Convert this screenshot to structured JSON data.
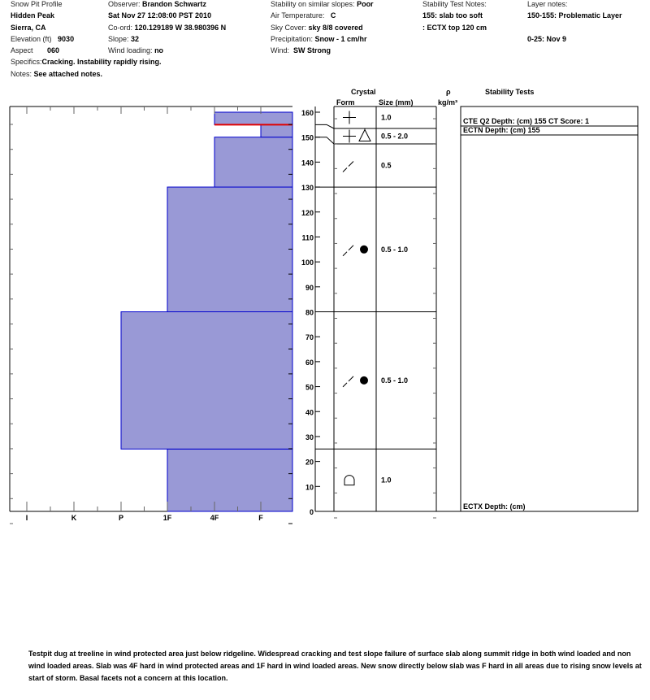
{
  "header": {
    "title": "Snow Pit Profile",
    "location": "Hidden Peak",
    "region": "Sierra, CA",
    "elevation_label": "Elevation (ft)",
    "elevation": "9030",
    "aspect_label": "Aspect",
    "aspect": "060",
    "specifics_label": "Specifics:",
    "specifics": "Cracking. Instability rapidly rising.",
    "notes_label": "Notes:",
    "notes": "See attached notes.",
    "observer_label": "Observer:",
    "observer": "Brandon Schwartz",
    "datetime": "Sat Nov 27 12:08:00 PST 2010",
    "coord_label": "Co-ord:",
    "coord": "120.129189 W 38.980396 N",
    "slope_label": "Slope:",
    "slope": "32",
    "wind_loading_label": "Wind loading:",
    "wind_loading": "no",
    "stability_label": "Stability on similar slopes:",
    "stability": "Poor",
    "air_temp_label": "Air Temperature:",
    "air_temp": "C",
    "sky_label": "Sky Cover:",
    "sky": "sky 8/8 covered",
    "precip_label": "Precipitation:",
    "precip": "Snow - 1 cm/hr",
    "wind_label": "Wind:",
    "wind": "SW Strong",
    "test_notes_label": "Stability Test Notes:",
    "test_notes": [
      "155: slab too soft",
      ": ECTX top 120 cm"
    ],
    "layer_notes_label": "Layer notes:",
    "layer_notes": [
      "150-155: Problematic Layer",
      "0-25: Nov 9"
    ]
  },
  "columns": {
    "crystal": "Crystal",
    "form": "Form",
    "size": "Size (mm)",
    "rho": "ρ",
    "density_unit": "kg/m³",
    "stability_tests": "Stability Tests"
  },
  "chart_data": {
    "type": "bar",
    "subtype": "snow-hardness-profile",
    "ylim": [
      0,
      160
    ],
    "yticks": [
      0,
      10,
      20,
      30,
      40,
      50,
      60,
      70,
      80,
      90,
      100,
      110,
      120,
      130,
      140,
      150,
      160
    ],
    "hardness_scale": [
      "I",
      "K",
      "P",
      "1F",
      "4F",
      "F"
    ],
    "fill_color": "#9999d6",
    "edge_color": "#0000cc",
    "critical_layer_color": "#e00000",
    "critical_layer_depth": 155,
    "layers": [
      {
        "bottom": 0,
        "top": 25,
        "hardness": "1F"
      },
      {
        "bottom": 25,
        "top": 80,
        "hardness": "P"
      },
      {
        "bottom": 80,
        "top": 130,
        "hardness": "1F"
      },
      {
        "bottom": 130,
        "top": 150,
        "hardness": "4F"
      },
      {
        "bottom": 150,
        "top": 155,
        "hardness": "F"
      },
      {
        "bottom": 155,
        "top": 160,
        "hardness": "4F"
      }
    ],
    "crystals": [
      {
        "bottom": 155,
        "top": 160,
        "forms": [
          "precipitation-particles"
        ],
        "size": "1.0"
      },
      {
        "bottom": 150,
        "top": 155,
        "forms": [
          "precipitation-particles",
          "faceted"
        ],
        "size": "0.5 -   2.0"
      },
      {
        "bottom": 130,
        "top": 150,
        "forms": [
          "decomposing-fragmented"
        ],
        "size": "0.5"
      },
      {
        "bottom": 80,
        "top": 130,
        "forms": [
          "decomposing-fragmented",
          "rounded"
        ],
        "size": "0.5 -   1.0"
      },
      {
        "bottom": 25,
        "top": 80,
        "forms": [
          "decomposing-fragmented",
          "rounded"
        ],
        "size": "0.5 -   1.0"
      },
      {
        "bottom": 0,
        "top": 25,
        "forms": [
          "depth-hoar"
        ],
        "size": "1.0"
      }
    ],
    "stability_tests": [
      {
        "text": "CTE Q2 Depth: (cm) 155 CT Score: 1",
        "depth": 155
      },
      {
        "text": "ECTN   Depth: (cm) 155",
        "depth": 155
      },
      {
        "text": "ECTX   Depth: (cm)",
        "depth": 0
      }
    ]
  },
  "footer_notes": "Testpit dug at treeline in wind protected area just below ridgeline. Widespread cracking and test slope failure of surface slab along summit ridge in both wind loaded and non wind loaded areas. Slab was 4F hard in wind protected areas and 1F hard in wind loaded areas. New snow directly below slab was F hard in all areas due to rising snow levels at start of storm. Basal facets not a concern at this location."
}
